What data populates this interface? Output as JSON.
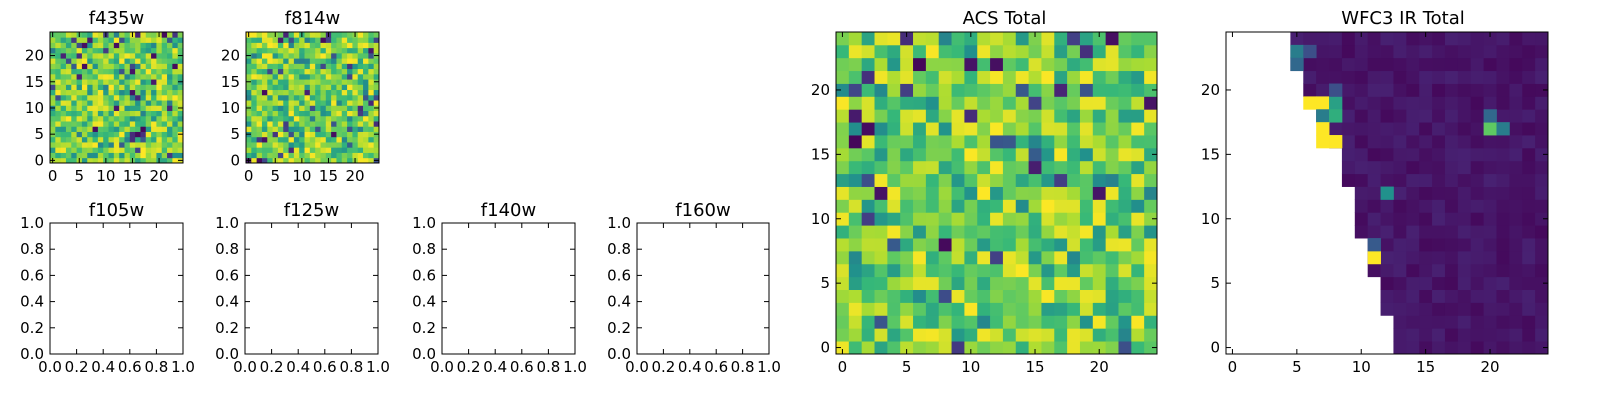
{
  "chart_data": [
    {
      "id": "f435w",
      "type": "heatmap",
      "title": "f435w",
      "grid_size": 25,
      "xticks": [
        "0",
        "5",
        "10",
        "15",
        "20"
      ],
      "yticks": [
        "0",
        "5",
        "10",
        "15",
        "20"
      ],
      "xlim": [
        -0.5,
        24.5
      ],
      "ylim": [
        -0.5,
        24.5
      ],
      "colormap": "viridis",
      "fill": "random-noise",
      "value_range": [
        0,
        1
      ]
    },
    {
      "id": "f814w",
      "type": "heatmap",
      "title": "f814w",
      "grid_size": 25,
      "xticks": [
        "0",
        "5",
        "10",
        "15",
        "20"
      ],
      "yticks": [
        "0",
        "5",
        "10",
        "15",
        "20"
      ],
      "xlim": [
        -0.5,
        24.5
      ],
      "ylim": [
        -0.5,
        24.5
      ],
      "colormap": "viridis",
      "fill": "random-noise",
      "value_range": [
        0,
        1
      ]
    },
    {
      "id": "f105w",
      "type": "scatter",
      "title": "f105w",
      "xlim": [
        0,
        1
      ],
      "ylim": [
        0,
        1
      ],
      "xticks": [
        "0.0",
        "0.2",
        "0.4",
        "0.6",
        "0.8",
        "1.0"
      ],
      "yticks": [
        "0.0",
        "0.2",
        "0.4",
        "0.6",
        "0.8",
        "1.0"
      ],
      "values": []
    },
    {
      "id": "f125w",
      "type": "scatter",
      "title": "f125w",
      "xlim": [
        0,
        1
      ],
      "ylim": [
        0,
        1
      ],
      "xticks": [
        "0.0",
        "0.2",
        "0.4",
        "0.6",
        "0.8",
        "1.0"
      ],
      "yticks": [
        "0.0",
        "0.2",
        "0.4",
        "0.6",
        "0.8",
        "1.0"
      ],
      "values": []
    },
    {
      "id": "f140w",
      "type": "scatter",
      "title": "f140w",
      "xlim": [
        0,
        1
      ],
      "ylim": [
        0,
        1
      ],
      "xticks": [
        "0.0",
        "0.2",
        "0.4",
        "0.6",
        "0.8",
        "1.0"
      ],
      "yticks": [
        "0.0",
        "0.2",
        "0.4",
        "0.6",
        "0.8",
        "1.0"
      ],
      "values": []
    },
    {
      "id": "f160w",
      "type": "scatter",
      "title": "f160w",
      "xlim": [
        0,
        1
      ],
      "ylim": [
        0,
        1
      ],
      "xticks": [
        "0.0",
        "0.2",
        "0.4",
        "0.6",
        "0.8",
        "1.0"
      ],
      "yticks": [
        "0.0",
        "0.2",
        "0.4",
        "0.6",
        "0.8",
        "1.0"
      ],
      "values": []
    },
    {
      "id": "acs-total",
      "type": "heatmap",
      "title": "ACS Total",
      "grid_size": 25,
      "xticks": [
        "0",
        "5",
        "10",
        "15",
        "20"
      ],
      "yticks": [
        "0",
        "5",
        "10",
        "15",
        "20"
      ],
      "xlim": [
        -0.5,
        24.5
      ],
      "ylim": [
        -0.5,
        24.5
      ],
      "colormap": "viridis",
      "fill": "random-noise",
      "value_range": [
        0,
        1
      ]
    },
    {
      "id": "wfc3-ir-total",
      "type": "heatmap",
      "title": "WFC3 IR Total",
      "grid_size": 25,
      "xticks": [
        "0",
        "5",
        "10",
        "15",
        "20"
      ],
      "yticks": [
        "0",
        "5",
        "10",
        "15",
        "20"
      ],
      "xlim": [
        -0.5,
        24.5
      ],
      "ylim": [
        -0.5,
        24.5
      ],
      "colormap": "viridis",
      "fill": "masked-wedge",
      "mask_edge_x_by_row": [
        12.5,
        12.5,
        12.5,
        11.5,
        11.5,
        11.5,
        10.5,
        10.5,
        10.5,
        9.5,
        9.5,
        9.5,
        9.5,
        8.5,
        8.5,
        8.5,
        7.5,
        7.5,
        6.5,
        6.5,
        5.5,
        5.5,
        4.5,
        4.5,
        4.5
      ],
      "bright_pixels": [
        {
          "x": 11,
          "y": 7,
          "value": 1.0
        },
        {
          "x": 11,
          "y": 8,
          "value": 0.35
        },
        {
          "x": 12,
          "y": 12,
          "value": 0.5
        },
        {
          "x": 20,
          "y": 17,
          "value": 0.75
        },
        {
          "x": 21,
          "y": 17,
          "value": 0.45
        },
        {
          "x": 20,
          "y": 18,
          "value": 0.4
        },
        {
          "x": 7,
          "y": 19,
          "value": 1.0
        },
        {
          "x": 6,
          "y": 19,
          "value": 1.0
        },
        {
          "x": 8,
          "y": 19,
          "value": 0.55
        },
        {
          "x": 7,
          "y": 18,
          "value": 0.45
        },
        {
          "x": 8,
          "y": 18,
          "value": 0.6
        },
        {
          "x": 7,
          "y": 17,
          "value": 1.0
        },
        {
          "x": 8,
          "y": 16,
          "value": 1.0
        },
        {
          "x": 7,
          "y": 16,
          "value": 1.0
        },
        {
          "x": 8,
          "y": 20,
          "value": 0.3
        },
        {
          "x": 5,
          "y": 23,
          "value": 0.45
        },
        {
          "x": 5,
          "y": 22,
          "value": 0.4
        },
        {
          "x": 6,
          "y": 23,
          "value": 0.3
        }
      ],
      "value_range": [
        0,
        1
      ]
    }
  ]
}
